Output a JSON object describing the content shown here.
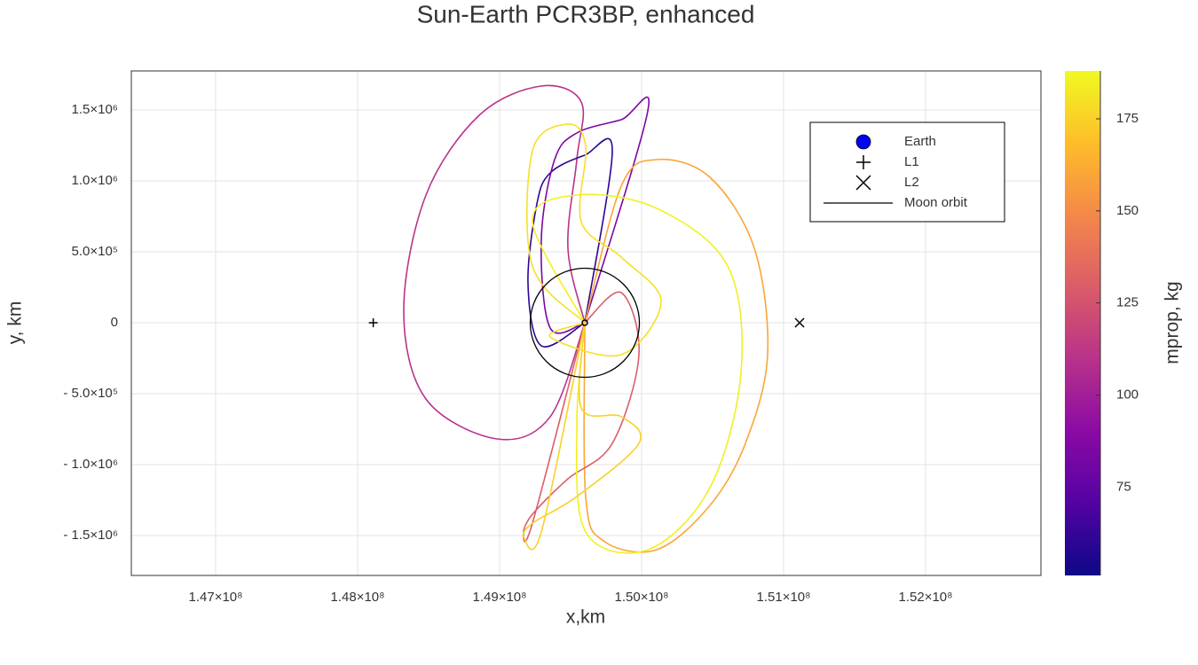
{
  "chart_data": {
    "type": "trajectories",
    "title": "Sun-Earth PCR3BP, enhanced",
    "x_label": "x,km",
    "y_label": "y, km",
    "xlim": [
      146406250,
      152812500
    ],
    "ylim": [
      -1781250,
      1775000
    ],
    "xticks": [
      {
        "value": 147000000,
        "label": "1.47×10⁸"
      },
      {
        "value": 148000000,
        "label": "1.48×10⁸"
      },
      {
        "value": 149000000,
        "label": "1.49×10⁸"
      },
      {
        "value": 150000000,
        "label": "1.50×10⁸"
      },
      {
        "value": 151000000,
        "label": "1.51×10⁸"
      },
      {
        "value": 152000000,
        "label": "1.52×10⁸"
      }
    ],
    "yticks": [
      {
        "value": -1500000,
        "label": "- 1.5×10⁶"
      },
      {
        "value": -1000000,
        "label": "- 1.0×10⁶"
      },
      {
        "value": -500000,
        "label": "- 5.0×10⁵"
      },
      0,
      {
        "value": 500000,
        "label": "5.0×10⁵"
      },
      {
        "value": 1000000,
        "label": "1.0×10⁶"
      },
      {
        "value": 1500000,
        "label": "1.5×10⁶"
      }
    ],
    "grid": true,
    "colorbar": {
      "label": "mprop, kg",
      "clim": [
        51,
        188
      ],
      "ticks": [
        75,
        100,
        125,
        150,
        175
      ],
      "colormap": [
        "#0d0887",
        "#5302a3",
        "#8b0aa5",
        "#b83289",
        "#db5c68",
        "#f48849",
        "#febd2a",
        "#f0f921"
      ]
    },
    "series": [
      {
        "mprop": 110,
        "x": [
          149600000,
          149356250,
          148981250,
          148481250,
          148325000,
          148481250,
          148856250,
          149293750,
          149575000,
          149543750,
          149481250,
          149600000
        ],
        "y": [
          0,
          -662500,
          -818750,
          -537500,
          87500,
          900000,
          1462500,
          1668750,
          1556250,
          1150000,
          525000,
          0
        ]
      },
      {
        "mprop": 60,
        "x": [
          149600000,
          149293750,
          149200000,
          149262500,
          149356250,
          149600000,
          149793750,
          149600000
        ],
        "y": [
          0,
          -162500,
          275000,
          837500,
          1056250,
          1181250,
          1212500,
          0
        ]
      },
      {
        "mprop": 85,
        "x": [
          149600000,
          149356250,
          149293750,
          149387500,
          149543750,
          149856250,
          150043750,
          149600000
        ],
        "y": [
          0,
          -37500,
          587500,
          1150000,
          1337500,
          1431250,
          1493750,
          0
        ]
      },
      {
        "mprop": 160,
        "x": [
          149600000,
          149856250,
          150106250,
          150481250,
          150793750,
          150887500,
          150731250,
          150481250,
          150106250,
          149731250,
          149606250,
          149600000
        ],
        "y": [
          0,
          962500,
          1150000,
          1025000,
          525000,
          -225000,
          -850000,
          -1287500,
          -1600000,
          -1537500,
          -1225000,
          0
        ]
      },
      {
        "mprop": 130,
        "x": [
          149600000,
          149856250,
          149981250,
          149793750,
          149481250,
          149231250,
          149168750,
          149231250,
          149600000
        ],
        "y": [
          0,
          212500,
          -225000,
          -850000,
          -1100000,
          -1350000,
          -1475000,
          -1412500,
          0
        ]
      },
      {
        "mprop": 185,
        "x": [
          149600000,
          149231250,
          149543750,
          150106250,
          150606250,
          150700000,
          150481250,
          150043750,
          149606250,
          149543750,
          149600000
        ],
        "y": [
          0,
          712500,
          900000,
          806250,
          400000,
          -350000,
          -1162500,
          -1600000,
          -1475000,
          -725000,
          0
        ]
      },
      {
        "mprop": 180,
        "x": [
          149600000,
          149231250,
          149231250,
          149481250,
          149606250,
          149575000,
          149856250,
          150137500,
          149856250,
          149356250,
          149600000
        ],
        "y": [
          0,
          400000,
          1212500,
          1400000,
          1243750,
          712500,
          462500,
          150000,
          -225000,
          -100000,
          0
        ]
      },
      {
        "mprop": 175,
        "x": [
          149600000,
          149575000,
          149856250,
          149981250,
          149543750,
          149231250,
          149168750,
          149293750,
          149600000
        ],
        "y": [
          0,
          -600000,
          -662500,
          -850000,
          -1225000,
          -1412500,
          -1506250,
          -1475000,
          0
        ]
      }
    ],
    "markers": [
      {
        "name": "Earth",
        "x": 149600000,
        "y": 0,
        "symbol": "circle",
        "color": "#0000ff"
      },
      {
        "name": "L1",
        "x": 148110000,
        "y": 0,
        "symbol": "plus",
        "color": "#000000"
      },
      {
        "name": "L2",
        "x": 151112500,
        "y": 0,
        "symbol": "cross",
        "color": "#000000"
      }
    ],
    "moon_orbit": {
      "name": "Moon orbit",
      "radius": 384400,
      "color": "#000000"
    },
    "legend": "top-right"
  }
}
